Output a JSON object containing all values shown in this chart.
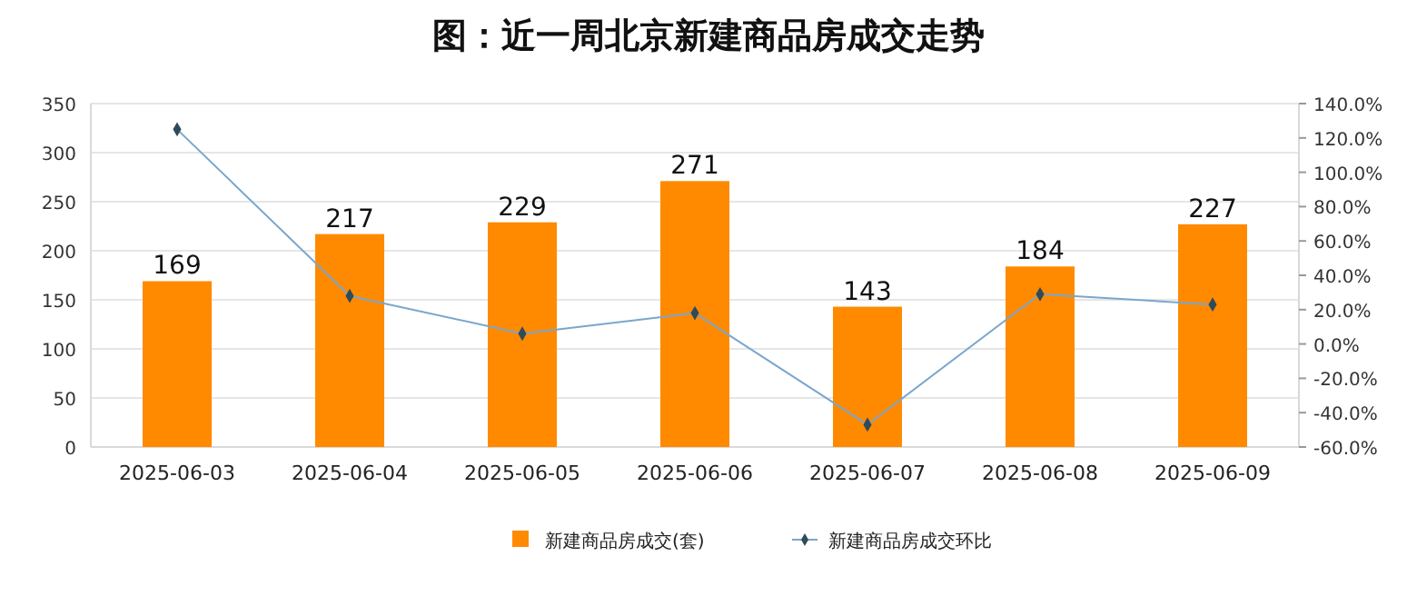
{
  "chart_data": {
    "type": "bar",
    "title": "图：近一周北京新建商品房成交走势",
    "categories": [
      "2025-06-03",
      "2025-06-04",
      "2025-06-05",
      "2025-06-06",
      "2025-06-07",
      "2025-06-08",
      "2025-06-09"
    ],
    "series": [
      {
        "name": "新建商品房成交(套)",
        "color": "#ff8a00",
        "values": [
          169,
          217,
          229,
          271,
          143,
          184,
          227
        ],
        "value_labels": [
          "169",
          "217",
          "229",
          "271",
          "143",
          "184",
          "227"
        ]
      },
      {
        "name": "新建商品房成交环比",
        "type": "line",
        "axis": "y2",
        "color": "#7aa6cc",
        "marker": "diamond",
        "values": [
          125,
          28,
          6,
          18,
          -47,
          29,
          23
        ]
      }
    ],
    "ylim": [
      0,
      350
    ],
    "yticks": [
      0,
      50,
      100,
      150,
      200,
      250,
      300,
      350
    ],
    "y2lim": [
      -60,
      140
    ],
    "y2ticks": [
      {
        "value": -60,
        "label": "-60.0%"
      },
      {
        "value": -40,
        "label": "-40.0%"
      },
      {
        "value": -20,
        "label": "-20.0%"
      },
      {
        "value": 0,
        "label": "0.0%"
      },
      {
        "value": 20,
        "label": "20.0%"
      },
      {
        "value": 40,
        "label": "40.0%"
      },
      {
        "value": 60,
        "label": "60.0%"
      },
      {
        "value": 80,
        "label": "80.0%"
      },
      {
        "value": 100,
        "label": "100.0%"
      },
      {
        "value": 120,
        "label": "120.0%"
      },
      {
        "value": 140,
        "label": "140.0%"
      }
    ],
    "grid": "y",
    "legend": "bottom",
    "line_style": "solid"
  }
}
